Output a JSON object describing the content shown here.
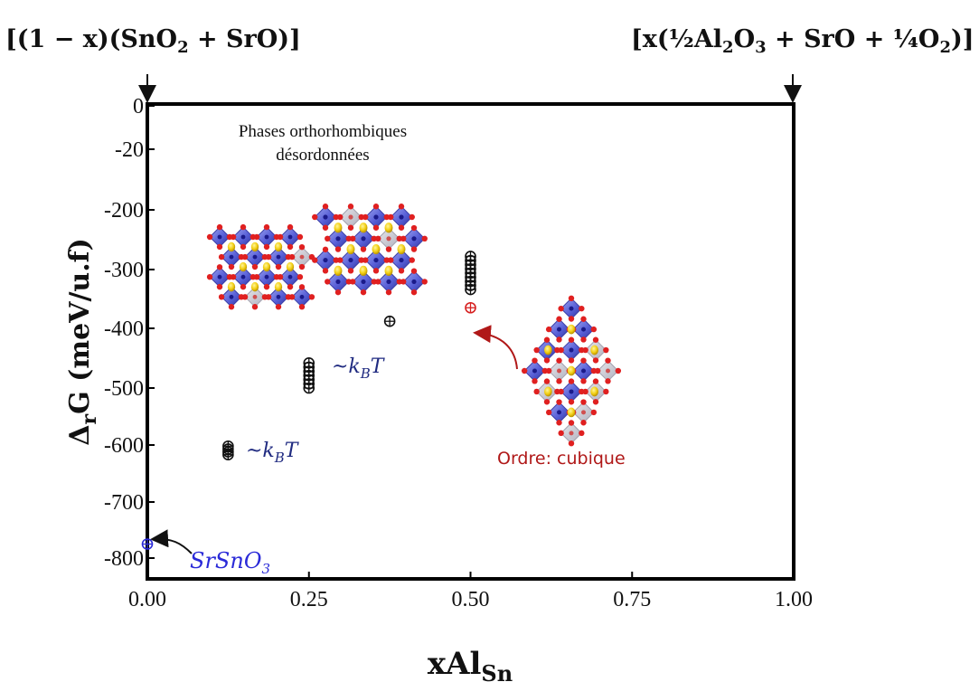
{
  "chart_data": {
    "type": "scatter",
    "xlabel": "xAl",
    "xlabel_sub": "Sn",
    "ylabel_main": "Δ",
    "ylabel_sub": "r",
    "ylabel_rest": "G (meV/u.f)",
    "x_ticks": [
      "0.00",
      "0.25",
      "0.50",
      "0.75",
      "1.00"
    ],
    "x_tick_values": [
      0,
      0.25,
      0.5,
      0.75,
      1.0
    ],
    "y_ticks": [
      "0",
      "-20",
      "-200",
      "-300",
      "-400",
      "-500",
      "-600",
      "-700",
      "-800"
    ],
    "y_tick_values": [
      0,
      -20,
      -200,
      -300,
      -400,
      -500,
      -600,
      -700,
      -800
    ],
    "xlim": [
      0,
      1
    ],
    "ylim": [
      -850,
      0
    ],
    "grid": false,
    "left_formula": "[(1 − x)(SnO2 + SrO)]",
    "right_formula": "[x(½Al2O3 + SrO + ¼O2)]",
    "series": [
      {
        "color": "#111111",
        "points": [
          {
            "x": 0.125,
            "y": -602
          },
          {
            "x": 0.125,
            "y": -607
          },
          {
            "x": 0.125,
            "y": -612
          },
          {
            "x": 0.125,
            "y": -617
          },
          {
            "x": 0.25,
            "y": -458
          },
          {
            "x": 0.25,
            "y": -465
          },
          {
            "x": 0.25,
            "y": -472
          },
          {
            "x": 0.25,
            "y": -479
          },
          {
            "x": 0.25,
            "y": -486
          },
          {
            "x": 0.25,
            "y": -493
          },
          {
            "x": 0.25,
            "y": -500
          },
          {
            "x": 0.375,
            "y": -388
          },
          {
            "x": 0.5,
            "y": -278
          },
          {
            "x": 0.5,
            "y": -285
          },
          {
            "x": 0.5,
            "y": -292
          },
          {
            "x": 0.5,
            "y": -299
          },
          {
            "x": 0.5,
            "y": -306
          },
          {
            "x": 0.5,
            "y": -313
          },
          {
            "x": 0.5,
            "y": -320
          },
          {
            "x": 0.5,
            "y": -327
          },
          {
            "x": 0.5,
            "y": -334
          }
        ]
      },
      {
        "color": "#d62020",
        "points": [
          {
            "x": 0.5,
            "y": -365
          }
        ]
      },
      {
        "color": "#2a2ad8",
        "points": [
          {
            "x": 0.0,
            "y": -775
          }
        ]
      }
    ],
    "annotations": {
      "phases_line1": "Phases orthorhombiques",
      "phases_line2": "désordonnées",
      "kbt_1": "~kBT",
      "kbt_2": "~kBT",
      "ordre": "Ordre: cubique",
      "srsno3": "SrSnO3"
    },
    "colors": {
      "ordre": "#b01818",
      "srsno3": "#2a2ad8",
      "kbt": "#1f2a80"
    }
  }
}
